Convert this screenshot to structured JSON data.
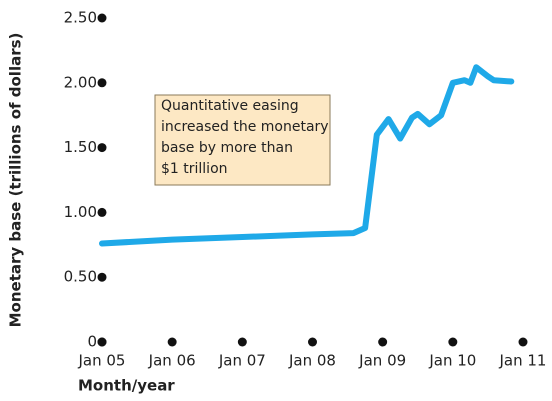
{
  "chart_data": {
    "type": "line",
    "y_label": "Monetary base (trillions of dollars)",
    "x_label": "Month/year",
    "annotation": [
      "Quantitative easing",
      "increased the monetary",
      "base by more than",
      "$1 trillion"
    ],
    "x": [
      "2005-01",
      "2006-01",
      "2007-01",
      "2008-01",
      "2008-08",
      "2008-10",
      "2008-12",
      "2009-02",
      "2009-04",
      "2009-06",
      "2009-07",
      "2009-09",
      "2009-11",
      "2010-01",
      "2010-03",
      "2010-04",
      "2010-05",
      "2010-07",
      "2010-08",
      "2010-11"
    ],
    "series": [
      {
        "color": "#1fa9e8",
        "values": [
          0.76,
          0.79,
          0.81,
          0.83,
          0.84,
          0.88,
          1.6,
          1.72,
          1.57,
          1.73,
          1.76,
          1.68,
          1.75,
          2.0,
          2.02,
          2.0,
          2.12,
          2.05,
          2.02,
          2.01
        ]
      }
    ],
    "xlim": [
      "2005-01",
      "2011-01"
    ],
    "xticks": [
      {
        "value": "2005-01",
        "label": "Jan 05"
      },
      {
        "value": "2006-01",
        "label": "Jan 06"
      },
      {
        "value": "2007-01",
        "label": "Jan 07"
      },
      {
        "value": "2008-01",
        "label": "Jan 08"
      },
      {
        "value": "2009-01",
        "label": "Jan 09"
      },
      {
        "value": "2010-01",
        "label": "Jan 10"
      },
      {
        "value": "2011-01",
        "label": "Jan 11"
      }
    ],
    "ylim": [
      0,
      2.5
    ],
    "yticks": [
      0,
      {
        "value": 0.5,
        "label": "0.50"
      },
      {
        "value": 1,
        "label": "1.00"
      },
      {
        "value": 1.5,
        "label": "1.50"
      },
      {
        "value": 2,
        "label": "2.00"
      },
      {
        "value": 2.5,
        "label": "2.50"
      }
    ]
  }
}
